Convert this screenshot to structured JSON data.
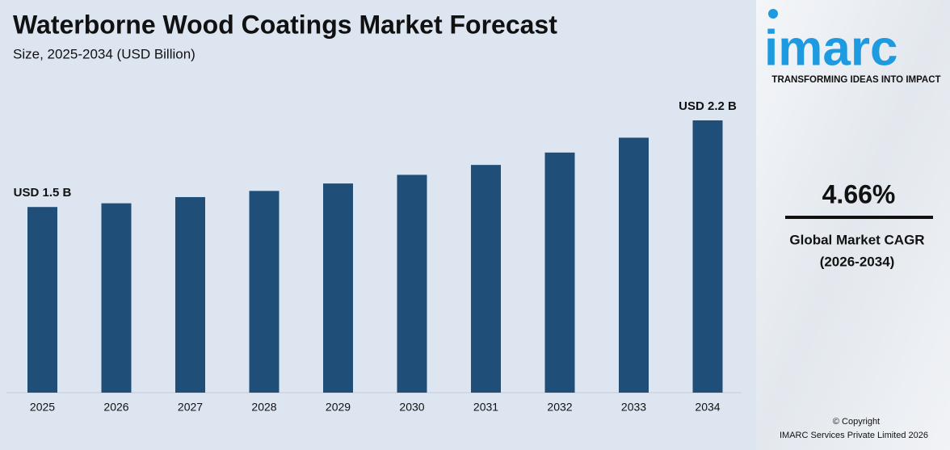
{
  "chart_data": {
    "type": "bar",
    "title": "Waterborne Wood Coatings Market Forecast",
    "subtitle": "Size, 2025-2034 (USD Billion)",
    "categories": [
      "2025",
      "2026",
      "2027",
      "2028",
      "2029",
      "2030",
      "2031",
      "2032",
      "2033",
      "2034"
    ],
    "values": [
      1.5,
      1.53,
      1.58,
      1.63,
      1.69,
      1.76,
      1.84,
      1.94,
      2.06,
      2.2
    ],
    "value_labels": [
      "USD 1.5 B",
      null,
      null,
      null,
      null,
      null,
      null,
      null,
      null,
      "USD 2.2 B"
    ],
    "color": "#1f4e79"
  },
  "panel": {
    "logo": "imarc",
    "tagline": "TRANSFORMING IDEAS INTO IMPACT",
    "cagr": "4.66%",
    "cagr_label": "Global Market CAGR",
    "cagr_period": "(2026-2034)",
    "copyright": [
      "© Copyright",
      "IMARC Services Private Limited 2026"
    ]
  }
}
